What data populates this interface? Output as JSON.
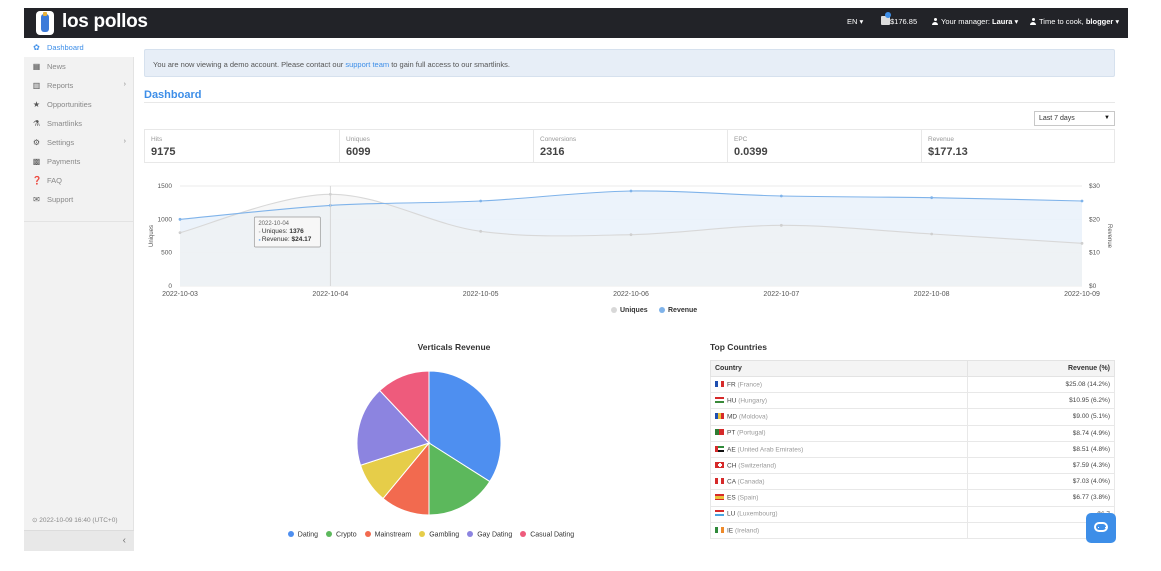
{
  "brand": {
    "name": "los pollos"
  },
  "topbar": {
    "language": "EN ▾",
    "balance": "$176.85",
    "manager": "Your manager: ",
    "manager_name": "Laura",
    "manager_caret": "▾",
    "greeting": "Time to cook, ",
    "username": "blogger",
    "user_caret": "▾"
  },
  "sidebar": {
    "items": [
      {
        "label": "Dashboard",
        "icon": "dashboard-icon"
      },
      {
        "label": "News",
        "icon": "calendar-icon"
      },
      {
        "label": "Reports",
        "icon": "bar-chart-icon"
      },
      {
        "label": "Opportunities",
        "icon": "star-icon"
      },
      {
        "label": "Smartlinks",
        "icon": "flask-icon"
      },
      {
        "label": "Settings",
        "icon": "gear-icon"
      },
      {
        "label": "Payments",
        "icon": "bank-icon"
      },
      {
        "label": "FAQ",
        "icon": "question-icon"
      },
      {
        "label": "Support",
        "icon": "envelope-icon"
      }
    ],
    "timestamp": "⊙ 2022-10-09 16:40 (UTC+0)",
    "collapse": "‹"
  },
  "notice": {
    "text_before": "You are now viewing a demo account. Please contact our ",
    "link": "support team",
    "text_after": " to gain full access to our smartlinks."
  },
  "page_title": "Dashboard",
  "date_range": {
    "selected": "Last 7 days"
  },
  "stats": [
    {
      "label": "Hits",
      "value": "9175"
    },
    {
      "label": "Uniques",
      "value": "6099"
    },
    {
      "label": "Conversions",
      "value": "2316"
    },
    {
      "label": "EPC",
      "value": "0.0399"
    },
    {
      "label": "Revenue",
      "value": "$177.13"
    }
  ],
  "chart_data": [
    {
      "type": "area",
      "x": [
        "2022-10-03",
        "2022-10-04",
        "2022-10-05",
        "2022-10-06",
        "2022-10-07",
        "2022-10-08",
        "2022-10-09"
      ],
      "series": [
        {
          "name": "Uniques",
          "axis": "left",
          "color": "#d8d8d8",
          "values": [
            800,
            1376,
            820,
            770,
            910,
            780,
            640
          ]
        },
        {
          "name": "Revenue",
          "axis": "right",
          "color": "#7fb3ea",
          "values": [
            20,
            24.17,
            25.5,
            28.5,
            27,
            26.5,
            25.5
          ]
        }
      ],
      "ylabel": "Uniques",
      "ylabel_right": "Revenue",
      "y_ticks": [
        "0",
        "500",
        "1000",
        "1500"
      ],
      "y_ticks_right": [
        "$0",
        "$10",
        "$20",
        "$30"
      ],
      "ylim": [
        0,
        1500
      ],
      "ylim_right": [
        0,
        30
      ],
      "legend": "bottom",
      "tooltip": {
        "date": "2022-10-04",
        "uniques_label": "Uniques: ",
        "uniques": "1376",
        "revenue_label": "Revenue: ",
        "revenue": "$24.17"
      }
    },
    {
      "type": "pie",
      "title": "Verticals Revenue",
      "categories": [
        "Dating",
        "Crypto",
        "Mainstream",
        "Gambling",
        "Gay Dating",
        "Casual Dating"
      ],
      "values": [
        34,
        16,
        11,
        9,
        18,
        12
      ],
      "colors": [
        "#4e8ff0",
        "#5cb85c",
        "#f26a4f",
        "#e6cd49",
        "#8c84e0",
        "#ee5b7c"
      ],
      "legend": "bottom"
    }
  ],
  "top_countries": {
    "title": "Top Countries",
    "headers": {
      "country": "Country",
      "revenue": "Revenue (%)"
    },
    "rows": [
      {
        "code": "FR",
        "name": "(France)",
        "revenue": "$25.08 (14.2%)"
      },
      {
        "code": "HU",
        "name": "(Hungary)",
        "revenue": "$10.95 (6.2%)"
      },
      {
        "code": "MD",
        "name": "(Moldova)",
        "revenue": "$9.00 (5.1%)"
      },
      {
        "code": "PT",
        "name": "(Portugal)",
        "revenue": "$8.74 (4.9%)"
      },
      {
        "code": "AE",
        "name": "(United Arab Emirates)",
        "revenue": "$8.51 (4.8%)"
      },
      {
        "code": "CH",
        "name": "(Switzerland)",
        "revenue": "$7.59 (4.3%)"
      },
      {
        "code": "CA",
        "name": "(Canada)",
        "revenue": "$7.03 (4.0%)"
      },
      {
        "code": "ES",
        "name": "(Spain)",
        "revenue": "$6.77 (3.8%)"
      },
      {
        "code": "LU",
        "name": "(Luxembourg)",
        "revenue": "$6.7"
      },
      {
        "code": "IE",
        "name": "(Ireland)",
        "revenue": "$6.3"
      }
    ]
  }
}
